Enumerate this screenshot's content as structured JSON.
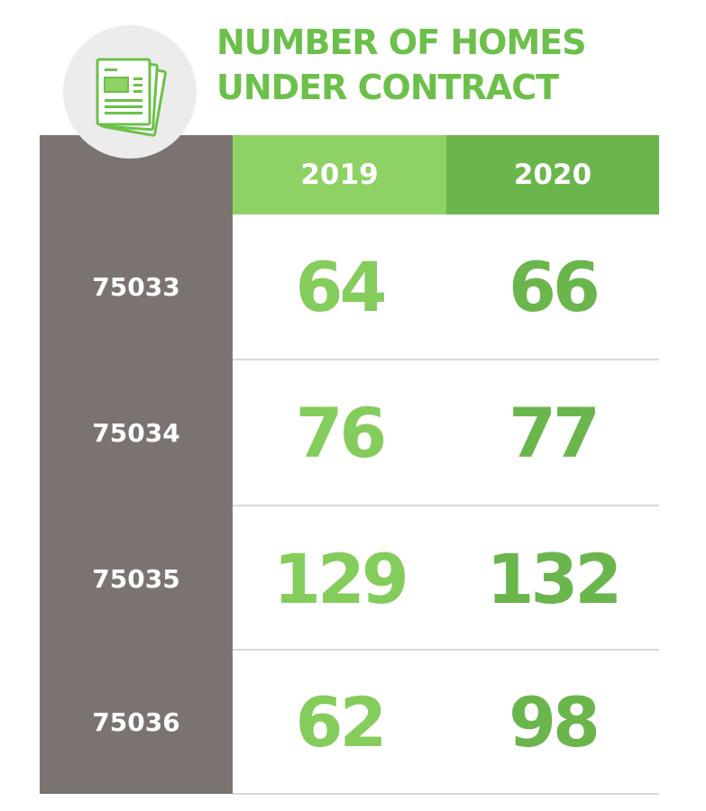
{
  "title": {
    "line1": "NUMBER OF HOMES",
    "line2": "UNDER CONTRACT"
  },
  "icon": "document-contract-icon",
  "colors": {
    "title_green": "#6cc04a",
    "header_2019": "#8ed164",
    "header_2020": "#6ab54c",
    "value_2019": "#84cc5b",
    "value_2020": "#6ab54c",
    "label_column": "#7b7370",
    "badge": "#ececec"
  },
  "chart_data": {
    "type": "table",
    "title": "NUMBER OF HOMES UNDER CONTRACT",
    "columns": [
      "2019",
      "2020"
    ],
    "rows": [
      {
        "label": "75033",
        "values": [
          "64",
          "66"
        ]
      },
      {
        "label": "75034",
        "values": [
          "76",
          "77"
        ]
      },
      {
        "label": "75035",
        "values": [
          "129",
          "132"
        ]
      },
      {
        "label": "75036",
        "values": [
          "62",
          "98"
        ]
      }
    ]
  }
}
